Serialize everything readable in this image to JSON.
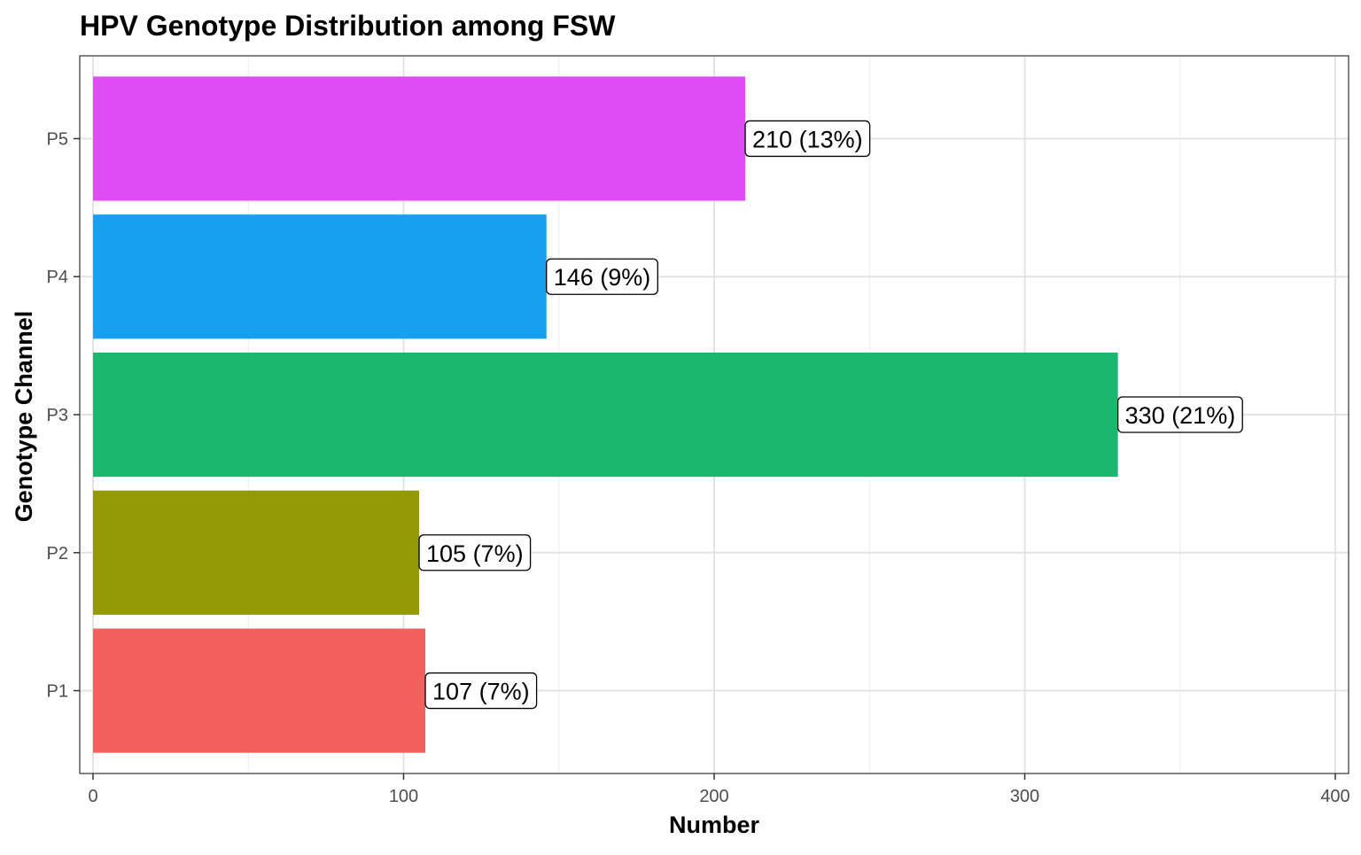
{
  "chart_data": {
    "type": "bar",
    "orientation": "horizontal",
    "title": "HPV Genotype Distribution among FSW",
    "xlabel": "Number",
    "ylabel": "Genotype Channel",
    "categories": [
      "P1",
      "P2",
      "P3",
      "P4",
      "P5"
    ],
    "values": [
      107,
      105,
      330,
      146,
      210
    ],
    "labels": [
      "107 (7%)",
      "105 (7%)",
      "330 (21%)",
      "146 (9%)",
      "210 (13%)"
    ],
    "colors": [
      "#F2615C",
      "#939903",
      "#1BB76E",
      "#18A0F0",
      "#E04CF3"
    ],
    "xlim": [
      0,
      400
    ],
    "xticks": [
      0,
      100,
      200,
      300,
      400
    ],
    "grid": true,
    "legend": "none"
  }
}
